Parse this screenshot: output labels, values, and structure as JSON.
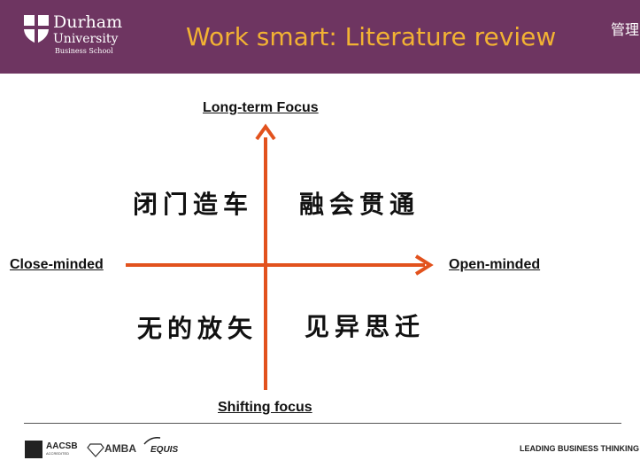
{
  "header": {
    "logo": {
      "line1": "Durham",
      "line2": "University",
      "line3": "Business School"
    },
    "title": "Work smart: Literature review",
    "corner_text": "管理"
  },
  "quadrant": {
    "top_label": "Long-term Focus",
    "bottom_label": "Shifting focus",
    "left_label": "Close-minded",
    "right_label": "Open-minded",
    "top_left": "闭门造车",
    "top_right": "融会贯通",
    "bottom_left": "无的放矢",
    "bottom_right": "见异思迁",
    "arrow_color": "#e2521d"
  },
  "footer": {
    "accreditations": [
      "AACSB",
      "AMBA",
      "EQUIS"
    ],
    "aacsb_sub": "ACCREDITED",
    "tagline": "LEADING BUSINESS THINKING"
  }
}
